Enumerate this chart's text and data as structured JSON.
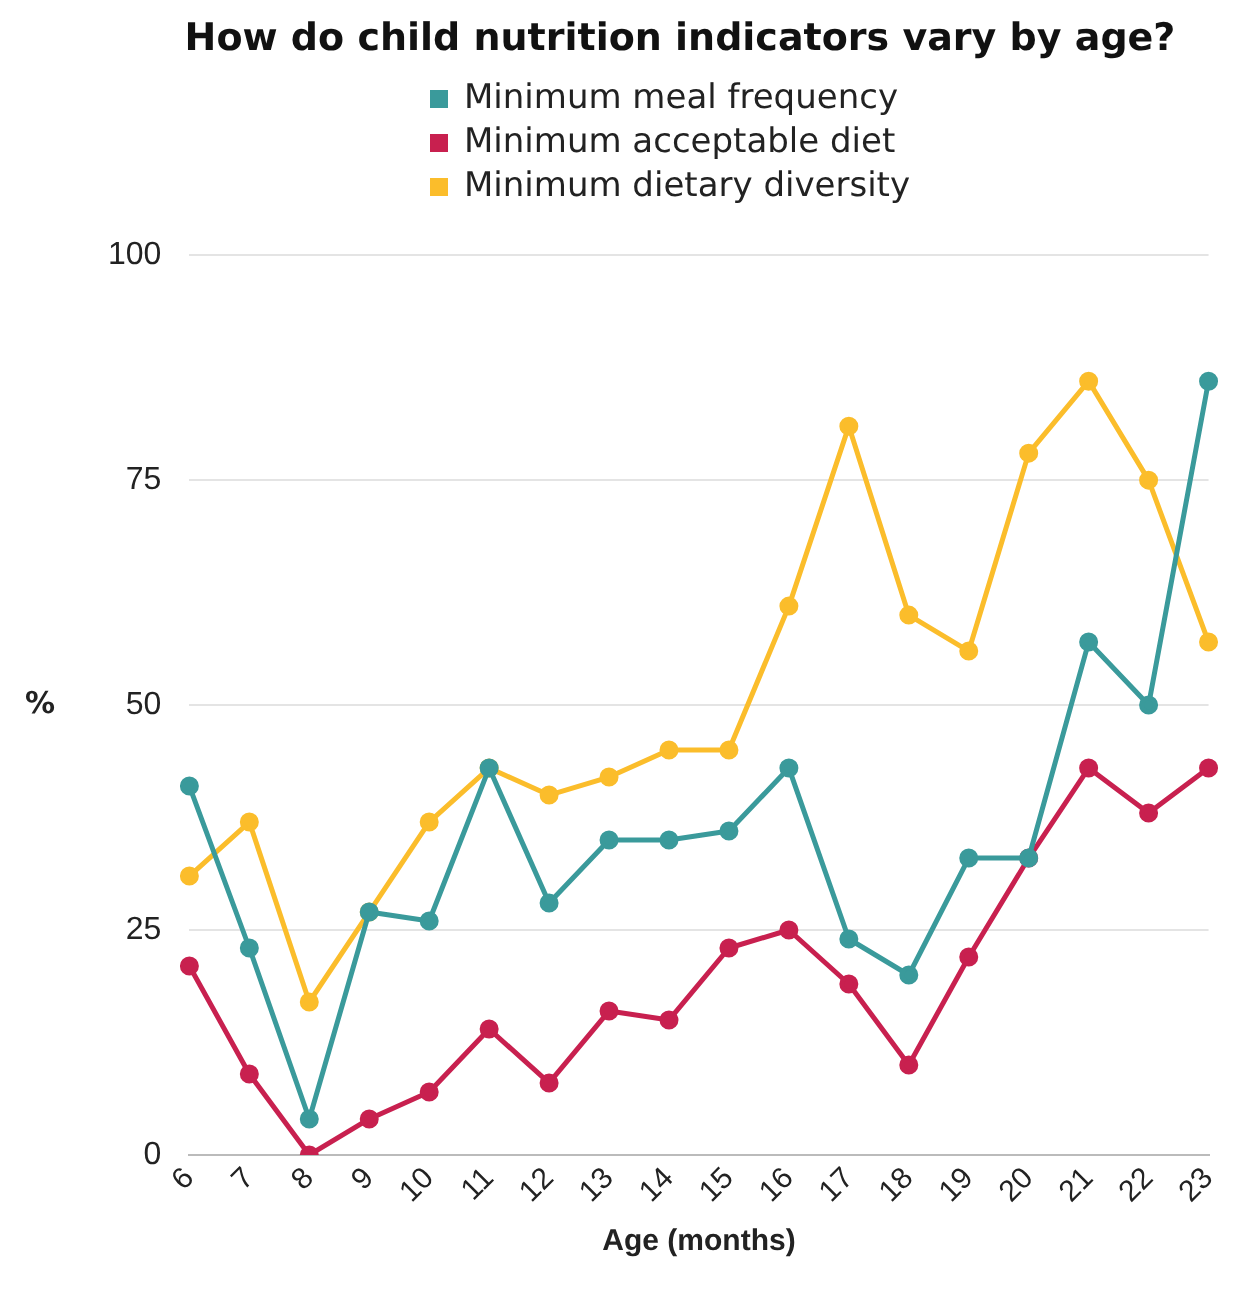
{
  "chart_data": {
    "type": "line",
    "title": "How do child nutrition indicators vary by age?",
    "xlabel": "Age (months)",
    "ylabel": "%",
    "categories": [
      "6",
      "7",
      "8",
      "9",
      "10",
      "11",
      "12",
      "13",
      "14",
      "15",
      "16",
      "17",
      "18",
      "19",
      "20",
      "21",
      "22",
      "23"
    ],
    "series": [
      {
        "name": "Minimum meal frequency",
        "color": "#3a9a9b",
        "values": [
          41,
          23,
          4,
          27,
          26,
          43,
          28,
          35,
          35,
          36,
          43,
          24,
          20,
          33,
          33,
          57,
          50,
          86
        ]
      },
      {
        "name": "Minimum acceptable diet",
        "color": "#c8204f",
        "values": [
          21,
          9,
          0,
          4,
          7,
          14,
          8,
          16,
          15,
          23,
          25,
          19,
          10,
          22,
          33,
          43,
          38,
          43
        ]
      },
      {
        "name": "Minimum dietary diversity",
        "color": "#fbbd2b",
        "values": [
          31,
          37,
          17,
          27,
          37,
          43,
          40,
          42,
          45,
          45,
          61,
          81,
          60,
          56,
          78,
          86,
          75,
          57
        ]
      }
    ],
    "ylim": [
      0,
      100
    ],
    "yticks": [
      0,
      25,
      50,
      75,
      100
    ],
    "grid": "y",
    "legend": "top",
    "marker": "circle",
    "line_style": "solid"
  }
}
